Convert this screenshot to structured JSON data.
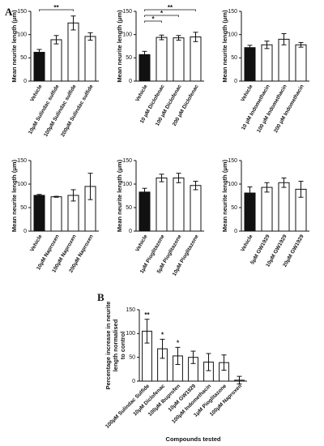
{
  "panel_labels": [
    "A",
    "B"
  ],
  "chart_data": [
    {
      "type": "bar",
      "ylabel": [
        "Mean neurite length (μm)"
      ],
      "categories": [
        "Vehicle",
        "10μM Sulindac sulfide",
        "100μM Sulindac sulfide",
        "200μM Sulindac sulfide"
      ],
      "values": [
        62,
        89,
        125,
        96
      ],
      "errors": [
        6,
        9,
        15,
        8
      ],
      "colors": [
        "#111111",
        "#ffffff",
        "#ffffff",
        "#ffffff"
      ],
      "ylim": [
        0,
        150
      ],
      "yticks": [
        0,
        50,
        100,
        150
      ],
      "brackets": [
        {
          "text": "**",
          "from": 0,
          "to": 2
        }
      ]
    },
    {
      "type": "bar",
      "ylabel": [
        "Mean neurite length (μm)"
      ],
      "categories": [
        "Vehicle",
        "10 μM Diclofenac",
        "100 μM Diclofenac",
        "200 μM Diclofenac"
      ],
      "values": [
        57,
        94,
        93,
        95
      ],
      "errors": [
        7,
        5,
        5,
        10
      ],
      "colors": [
        "#111111",
        "#ffffff",
        "#ffffff",
        "#ffffff"
      ],
      "ylim": [
        0,
        150
      ],
      "yticks": [
        0,
        50,
        100,
        150
      ],
      "brackets": [
        {
          "text": "**",
          "from": 0,
          "to": 3
        },
        {
          "text": "*",
          "from": 0,
          "to": 2
        },
        {
          "text": "*",
          "from": 0,
          "to": 1
        }
      ]
    },
    {
      "type": "bar",
      "ylabel": [
        "Mean neurite length (μm)"
      ],
      "categories": [
        "Vehicle",
        "10 μM Indomethacin",
        "100 μM Indomethacin",
        "200 μM Indomethacin"
      ],
      "values": [
        72,
        78,
        90,
        78
      ],
      "errors": [
        5,
        8,
        12,
        5
      ],
      "colors": [
        "#111111",
        "#ffffff",
        "#ffffff",
        "#ffffff"
      ],
      "ylim": [
        0,
        150
      ],
      "yticks": [
        0,
        50,
        100,
        150
      ]
    },
    {
      "type": "bar",
      "ylabel": [
        "Mean neurite length (μm)"
      ],
      "categories": [
        "Vehicle",
        "10μM Naproxen",
        "100μM Naproxen",
        "200μM Naproxen"
      ],
      "values": [
        76,
        73,
        76,
        95
      ],
      "errors": [
        2,
        1,
        12,
        28
      ],
      "colors": [
        "#111111",
        "#ffffff",
        "#ffffff",
        "#ffffff"
      ],
      "ylim": [
        0,
        150
      ],
      "yticks": [
        0,
        50,
        100,
        150
      ]
    },
    {
      "type": "bar",
      "ylabel": [
        "Mean neurite length (μm)"
      ],
      "categories": [
        "Vehicle",
        "1μM Pioglitazone",
        "5μM Pioglitazone",
        "10μM Pioglitazone"
      ],
      "values": [
        83,
        113,
        113,
        97
      ],
      "errors": [
        8,
        8,
        10,
        9
      ],
      "colors": [
        "#111111",
        "#ffffff",
        "#ffffff",
        "#ffffff"
      ],
      "ylim": [
        0,
        150
      ],
      "yticks": [
        0,
        50,
        100,
        150
      ]
    },
    {
      "type": "bar",
      "ylabel": [
        "Mean neurite length (μm)"
      ],
      "categories": [
        "Vehicle",
        "5μM GW1929",
        "10μM GW1929",
        "20μM GW1929"
      ],
      "values": [
        81,
        93,
        103,
        89
      ],
      "errors": [
        13,
        10,
        10,
        17
      ],
      "colors": [
        "#111111",
        "#ffffff",
        "#ffffff",
        "#ffffff"
      ],
      "ylim": [
        0,
        150
      ],
      "yticks": [
        0,
        50,
        100,
        150
      ]
    },
    {
      "type": "bar",
      "ylabel": [
        "Percentage increase in neurite",
        "length normalised",
        "to control"
      ],
      "xlabel": "Compounds tested",
      "categories": [
        "100μM Sulindac Sulfide",
        "10μM Diclofenac",
        "100μM Ibuprofen",
        "10μM GW1929",
        "100μM Indomethacin",
        "1μM Pioglitazone",
        "100μM Naproxen"
      ],
      "values": [
        105,
        68,
        53,
        50,
        40,
        39,
        2
      ],
      "errors": [
        25,
        20,
        18,
        13,
        18,
        16,
        8
      ],
      "colors": [
        "#ffffff",
        "#ffffff",
        "#ffffff",
        "#ffffff",
        "#ffffff",
        "#ffffff",
        "#ffffff"
      ],
      "ylim": [
        0,
        150
      ],
      "yticks": [
        0,
        50,
        100,
        150
      ],
      "bar_annotations": [
        "**",
        "*",
        "*",
        null,
        null,
        null,
        null
      ]
    }
  ]
}
